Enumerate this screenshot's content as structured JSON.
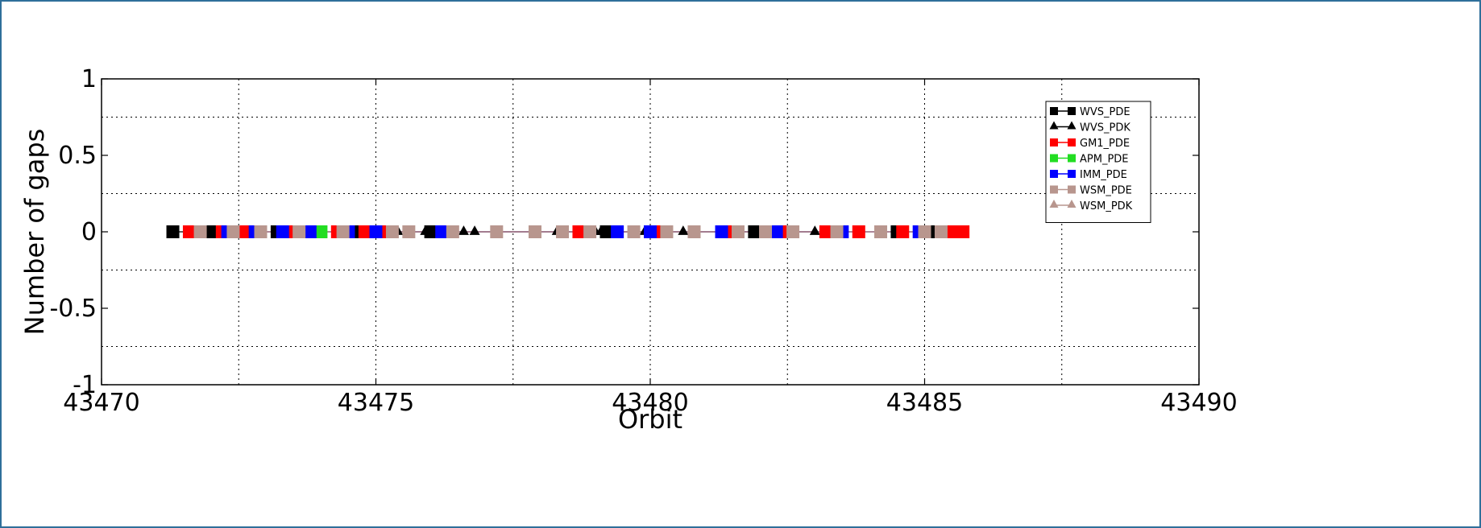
{
  "chart_data": {
    "type": "line",
    "xlabel": "Orbit",
    "ylabel": "Number of gaps",
    "xlim": [
      43470,
      43490
    ],
    "ylim": [
      -1,
      1
    ],
    "xticks": [
      43470,
      43475,
      43480,
      43485,
      43490
    ],
    "yticks": [
      -1,
      -0.5,
      0,
      0.5,
      1
    ],
    "xtick_labels": [
      "43470",
      "43475",
      "43480",
      "43485",
      "43490"
    ],
    "ytick_labels": [
      "-1",
      "-0.5",
      "0",
      "0.5",
      "1"
    ],
    "grid": true,
    "legend_position": "top-right",
    "series": [
      {
        "name": "WVS_PDE",
        "color": "#000000",
        "marker": "square",
        "x": [
          43471.3,
          43472.0,
          43473.2,
          43474.7,
          43476.0,
          43479.2,
          43481.9,
          43484.5,
          43485.2
        ],
        "y": [
          0,
          0,
          0,
          0,
          0,
          0,
          0,
          0,
          0
        ]
      },
      {
        "name": "WVS_PDK",
        "color": "#000000",
        "marker": "triangle",
        "x": [
          43475.4,
          43475.9,
          43476.6,
          43476.8,
          43478.3,
          43478.8,
          43479.0,
          43479.1,
          43479.3,
          43479.9,
          43480.6,
          43482.5,
          43483.0
        ],
        "y": [
          0,
          0,
          0,
          0,
          0,
          0,
          0,
          0,
          0,
          0,
          0,
          0,
          0
        ]
      },
      {
        "name": "GM1_PDE",
        "color": "#ff0000",
        "marker": "square",
        "x": [
          43471.6,
          43472.2,
          43472.6,
          43473.5,
          43474.3,
          43474.8,
          43475.1,
          43478.7,
          43480.2,
          43481.4,
          43482.4,
          43483.2,
          43483.8,
          43484.6,
          43485.5,
          43485.7
        ],
        "y": [
          0,
          0,
          0,
          0,
          0,
          0,
          0,
          0,
          0,
          0,
          0,
          0,
          0,
          0,
          0,
          0
        ]
      },
      {
        "name": "APM_PDE",
        "color": "#22dd22",
        "marker": "square",
        "x": [
          43474.0
        ],
        "y": [
          0
        ]
      },
      {
        "name": "IMM_PDE",
        "color": "#0000ff",
        "marker": "square",
        "x": [
          43472.3,
          43472.8,
          43473.3,
          43473.8,
          43474.5,
          43475.0,
          43476.2,
          43479.4,
          43480.0,
          43481.3,
          43482.3,
          43483.5,
          43484.9
        ],
        "y": [
          0,
          0,
          0,
          0,
          0,
          0,
          0,
          0,
          0,
          0,
          0,
          0,
          0
        ]
      },
      {
        "name": "WSM_PDE",
        "color": "#b8968e",
        "marker": "square",
        "x": [
          43471.8,
          43472.4,
          43472.9,
          43473.6,
          43474.4,
          43475.3,
          43475.6,
          43476.4,
          43477.2,
          43477.9,
          43478.4,
          43478.9,
          43479.7,
          43480.3,
          43480.8,
          43481.6,
          43482.1,
          43482.6,
          43483.4,
          43484.2,
          43485.0,
          43485.3
        ],
        "y": [
          0,
          0,
          0,
          0,
          0,
          0,
          0,
          0,
          0,
          0,
          0,
          0,
          0,
          0,
          0,
          0,
          0,
          0,
          0,
          0,
          0,
          0
        ]
      },
      {
        "name": "WSM_PDK",
        "color": "#b8968e",
        "marker": "triangle",
        "x": [],
        "y": []
      }
    ]
  }
}
